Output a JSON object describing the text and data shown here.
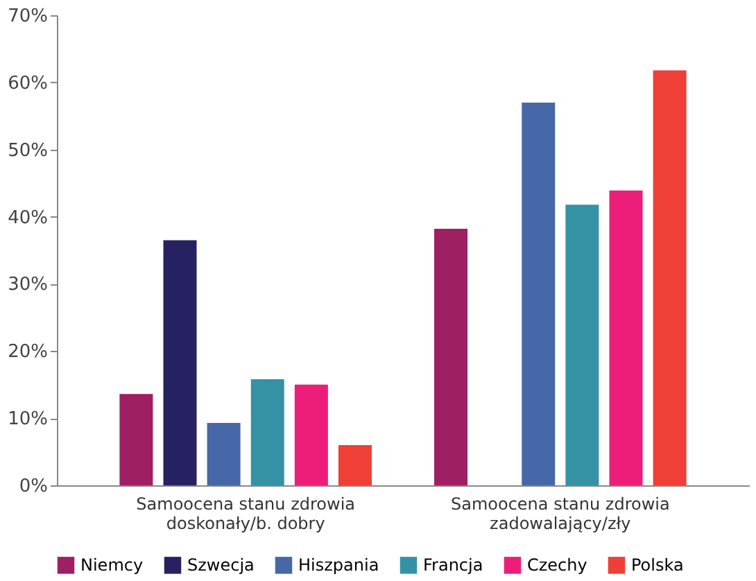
{
  "chart_data": {
    "type": "bar",
    "categories": [
      "Samoocena stanu zdrowia doskonały/b. dobry",
      "Samoocena stanu zdrowia zadowalający/zły"
    ],
    "series": [
      {
        "name": "Niemcy",
        "color": "#9e1f63",
        "values": [
          13.6,
          38.2
        ]
      },
      {
        "name": "Szwecja",
        "color": "#262262",
        "values": [
          36.5,
          null
        ]
      },
      {
        "name": "Hiszpania",
        "color": "#4668a8",
        "values": [
          9.3,
          57.0
        ]
      },
      {
        "name": "Francja",
        "color": "#3592a5",
        "values": [
          15.8,
          41.8
        ]
      },
      {
        "name": "Czechy",
        "color": "#ec1e79",
        "values": [
          15.0,
          43.9
        ]
      },
      {
        "name": "Polska",
        "color": "#ef3f36",
        "values": [
          6.0,
          61.8
        ]
      }
    ],
    "ylim": [
      0,
      70
    ],
    "yticks": [
      {
        "value": 0,
        "label": "0%"
      },
      {
        "value": 10,
        "label": "10%"
      },
      {
        "value": 20,
        "label": "20%"
      },
      {
        "value": 30,
        "label": "30%"
      },
      {
        "value": 40,
        "label": "40%"
      },
      {
        "value": 50,
        "label": "50%"
      },
      {
        "value": 60,
        "label": "60%"
      },
      {
        "value": 70,
        "label": "70%"
      }
    ],
    "grid": false,
    "legend": "bottom"
  }
}
